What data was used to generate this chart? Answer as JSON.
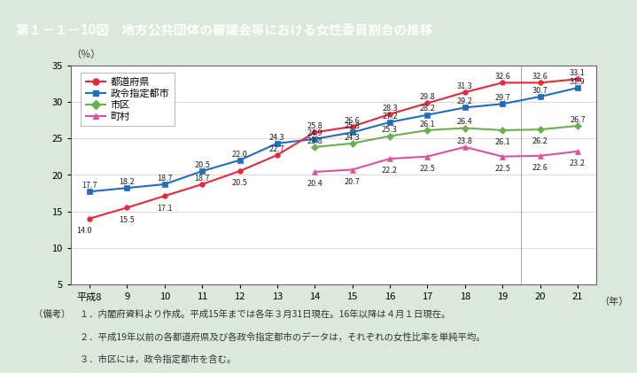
{
  "title": "第１－１－10図　地方公共団体の審議会等における女性委員割合の推移",
  "title_bg_color": "#8b7355",
  "title_text_color": "#ffffff",
  "plot_bg_color": "#ffffff",
  "outer_bg_color": "#dce8dc",
  "x_labels": [
    "平成8",
    "9",
    "10",
    "11",
    "12",
    "13",
    "14",
    "15",
    "16",
    "17",
    "18",
    "19",
    "20",
    "21"
  ],
  "x_year_label": "（年）",
  "y_label": "（％）",
  "ylim": [
    5,
    35
  ],
  "yticks": [
    5,
    10,
    15,
    20,
    25,
    30,
    35
  ],
  "series_order": [
    "都道府県",
    "政令指定都市",
    "市区",
    "町村"
  ],
  "series": {
    "都道府県": {
      "values": [
        14.0,
        15.5,
        17.1,
        18.7,
        20.5,
        22.7,
        25.8,
        26.6,
        28.3,
        29.8,
        31.3,
        32.6,
        32.6,
        33.1
      ],
      "color": "#e8273c",
      "marker": "o",
      "zorder": 4
    },
    "政令指定都市": {
      "values": [
        17.7,
        18.2,
        18.7,
        20.5,
        22.0,
        24.3,
        24.9,
        25.8,
        27.2,
        28.2,
        29.2,
        29.7,
        30.7,
        31.9
      ],
      "color": "#1f6dbf",
      "marker": "s",
      "zorder": 3
    },
    "市区": {
      "values": [
        null,
        null,
        null,
        null,
        null,
        null,
        23.8,
        24.3,
        25.3,
        26.1,
        26.4,
        26.1,
        26.2,
        26.7
      ],
      "color": "#6ab04c",
      "marker": "D",
      "zorder": 2
    },
    "町村": {
      "values": [
        null,
        null,
        null,
        null,
        null,
        null,
        20.4,
        20.7,
        22.2,
        22.5,
        23.8,
        22.5,
        22.6,
        23.2
      ],
      "color": "#e050a0",
      "marker": "^",
      "zorder": 1
    }
  },
  "note_lines": [
    "（備考）　１．内閣府資料より作成。平成15年までは各年３月31日現在。16年以降は４月１日現在。",
    "　　　　　２．平成19年以前の各都道府県及び各政令指定都市のデータは，それぞれの女性比率を単純平均。",
    "　　　　　３．市区には，政令指定都市を含む。"
  ],
  "font_size_data": 6.5,
  "font_size_axis": 8,
  "font_size_title": 10.5,
  "font_size_legend": 8,
  "font_size_note": 7.5
}
